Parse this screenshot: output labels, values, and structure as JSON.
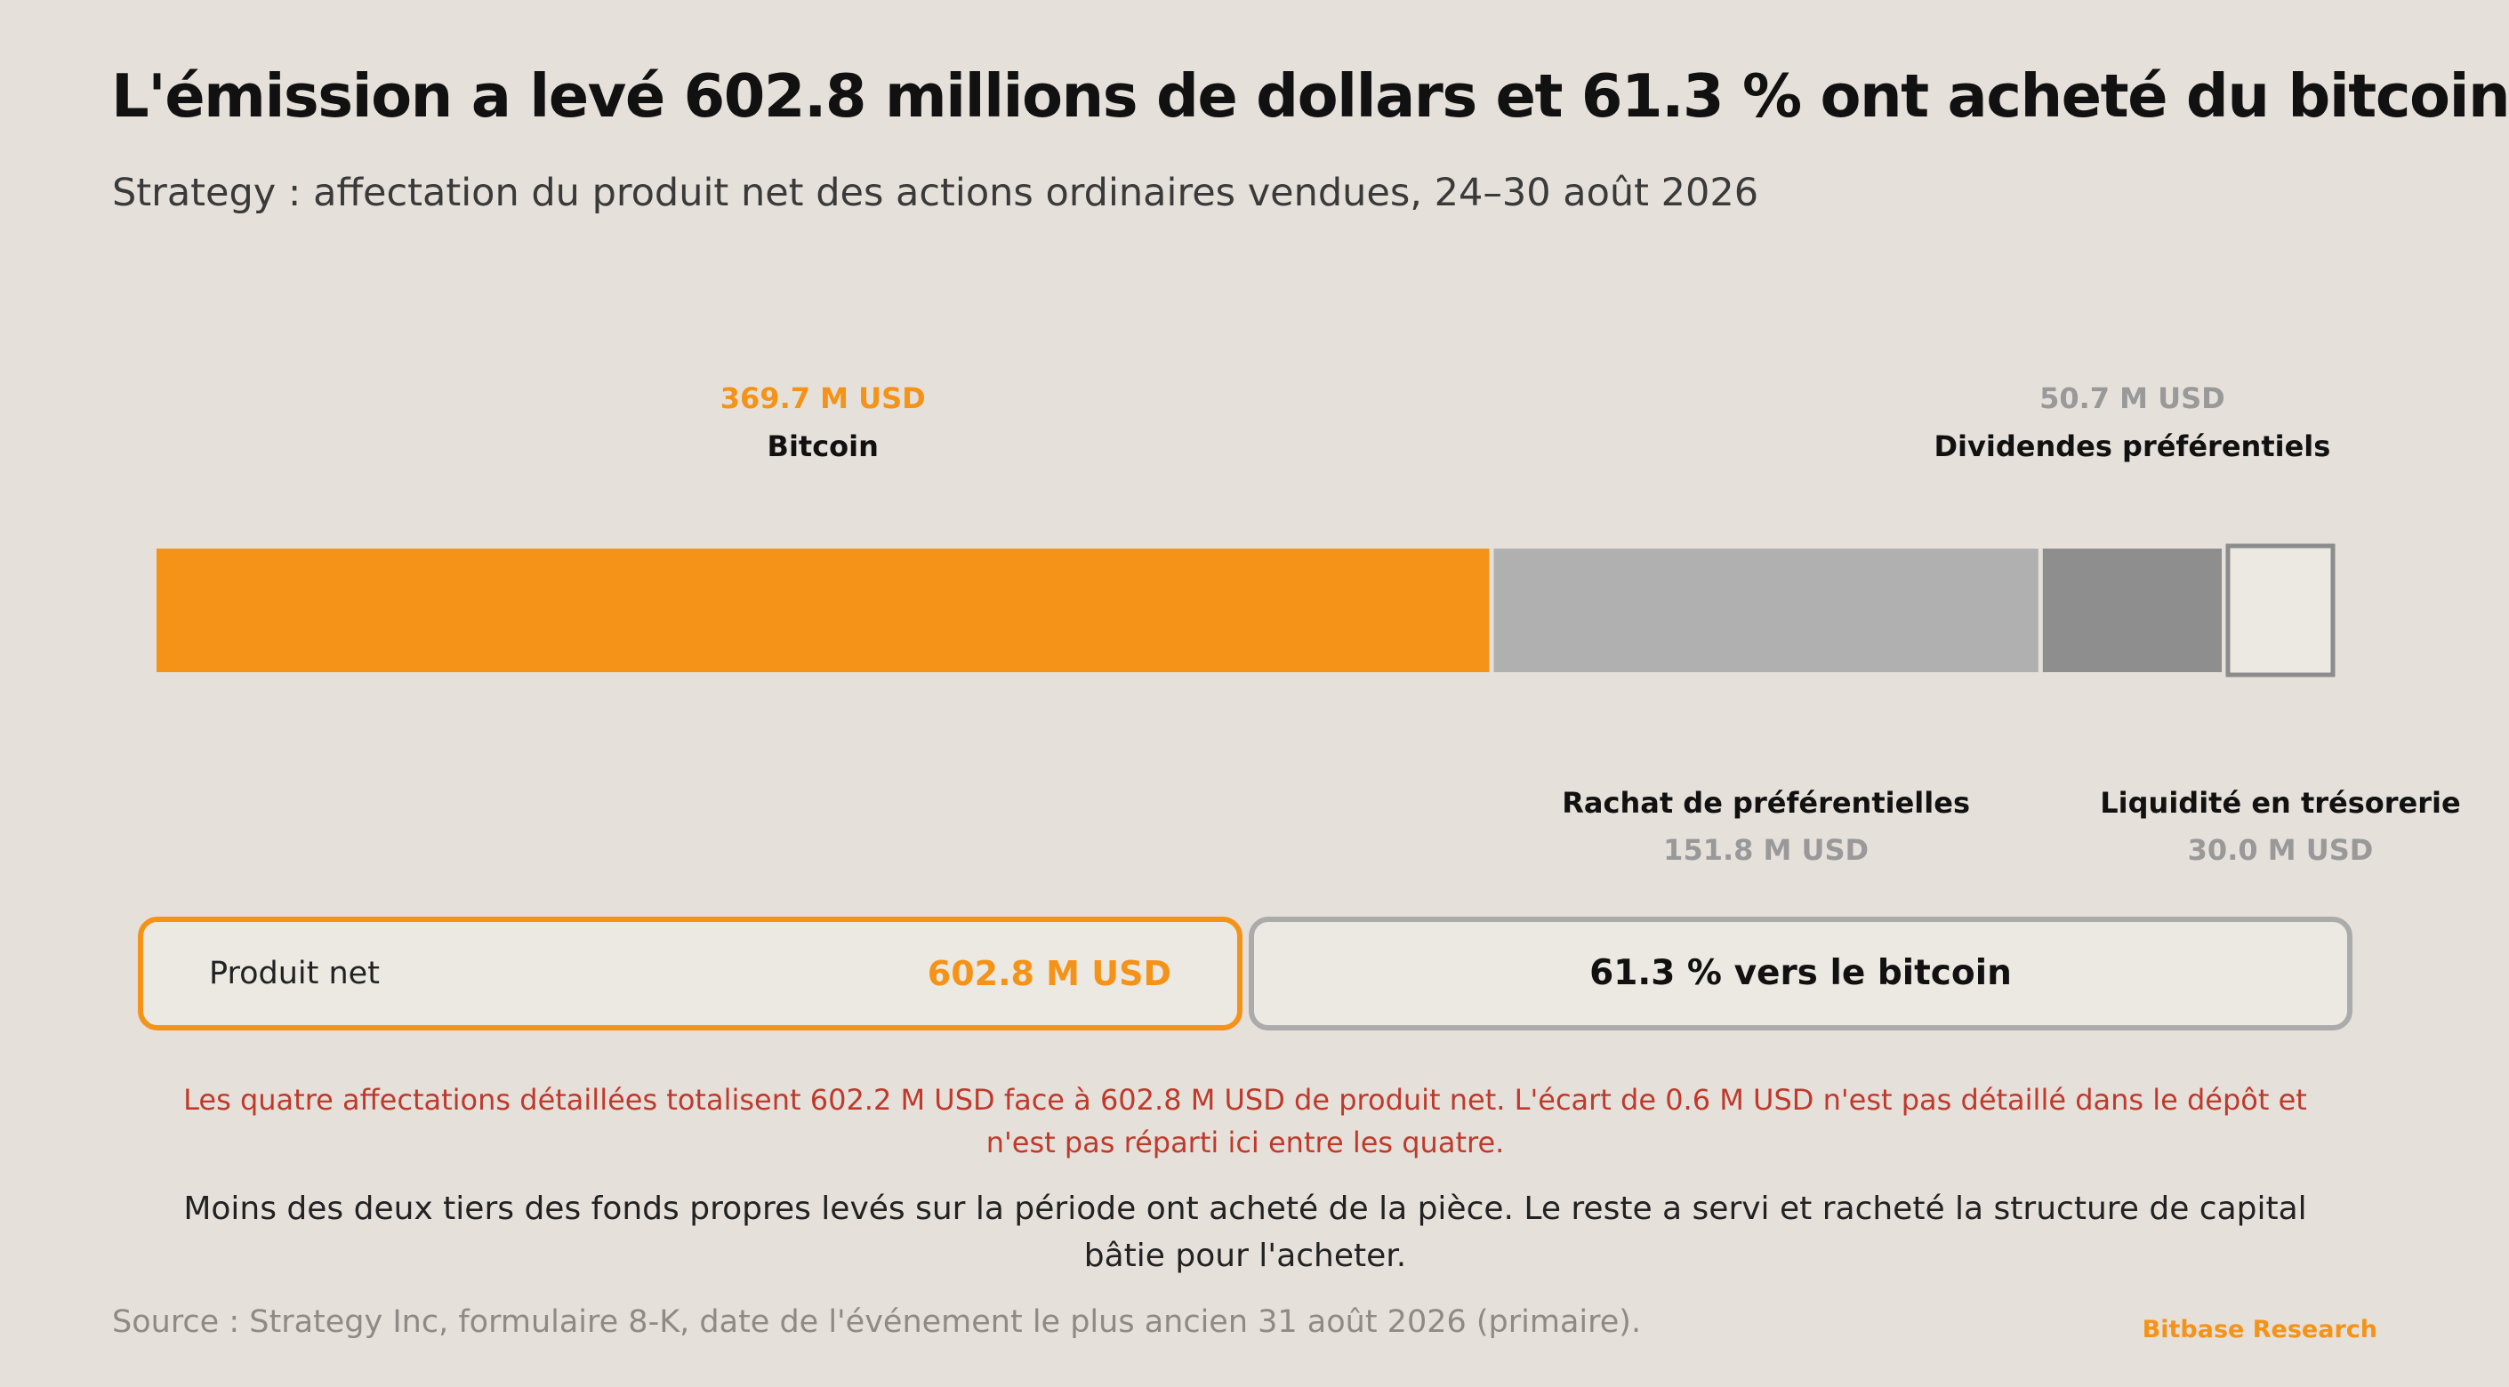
{
  "header": {
    "title": "L'émission a levé 602.8 millions de dollars et 61.3 % ont acheté du bitcoin",
    "subtitle": "Strategy : affectation du produit net des actions ordinaires vendues, 24–30 août 2026"
  },
  "chart_data": {
    "type": "bar",
    "orientation": "horizontal-stacked",
    "unit": "M USD",
    "categories": [
      "Bitcoin",
      "Rachat de préférentielles",
      "Dividendes préférentiels",
      "Liquidité en trésorerie"
    ],
    "values": [
      369.7,
      151.8,
      50.7,
      30.0
    ],
    "value_labels": [
      "369.7 M USD",
      "151.8 M USD",
      "50.7 M USD",
      "30.0 M USD"
    ],
    "label_positions": [
      "above",
      "below",
      "above",
      "below"
    ],
    "colors": [
      "#f59218",
      "#b0b0b0",
      "#8e8e8e",
      "#ece8e2"
    ]
  },
  "summary": {
    "net_label": "Produit net",
    "net_value": "602.8 M USD",
    "share_text": "61.3 % vers le bitcoin"
  },
  "note": "Les quatre affectations détaillées totalisent 602.2 M USD face à 602.8 M USD de produit net. L'écart de 0.6 M USD n'est pas détaillé dans le dépôt et n'est pas réparti ici entre les quatre.",
  "takeaway": "Moins des deux tiers des fonds propres levés sur la période ont acheté de la pièce. Le reste a servi et racheté la structure de capital bâtie pour l'acheter.",
  "footer": {
    "source": "Source : Strategy Inc, formulaire 8-K, date de l'événement le plus ancien 31 août 2026 (primaire).",
    "brand": "Bitbase Research"
  },
  "colors": {
    "accent": "#f59218",
    "background": "#e5e0da",
    "note": "#c0392b",
    "muted": "#8f8a85"
  }
}
